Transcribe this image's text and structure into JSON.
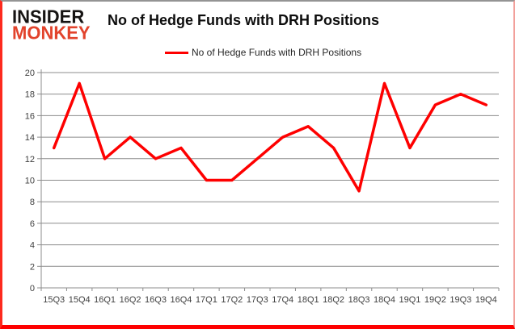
{
  "logo": {
    "line1": "INSIDER",
    "line2": "MONKEY"
  },
  "header": {
    "title": "No of Hedge Funds with DRH Positions"
  },
  "colors": {
    "line": "#fe0000",
    "logo_black": "#161413",
    "logo_red": "#e2432c",
    "gridline": "#8c8c8c",
    "axis_line": "#8c8c8c",
    "axis_text": "#3f3f3f",
    "border_red": "#fe0000",
    "border_top_gray": "#949494"
  },
  "chart_data": {
    "type": "line",
    "title": "No of Hedge Funds with DRH Positions",
    "categories": [
      "15Q3",
      "15Q4",
      "16Q1",
      "16Q2",
      "16Q3",
      "16Q4",
      "17Q1",
      "17Q2",
      "17Q3",
      "17Q4",
      "18Q1",
      "18Q2",
      "18Q3",
      "18Q4",
      "19Q1",
      "19Q2",
      "19Q3",
      "19Q4"
    ],
    "series": [
      {
        "name": "No of Hedge Funds with DRH Positions",
        "color": "#fe0000",
        "values": [
          13,
          19,
          12,
          14,
          12,
          13,
          10,
          10,
          12,
          14,
          15,
          13,
          9,
          19,
          13,
          17,
          18,
          17
        ]
      }
    ],
    "xlabel": "",
    "ylabel": "",
    "ylim": [
      0,
      20
    ],
    "ytick_step": 2,
    "grid": true,
    "legend_position": "top-center"
  }
}
